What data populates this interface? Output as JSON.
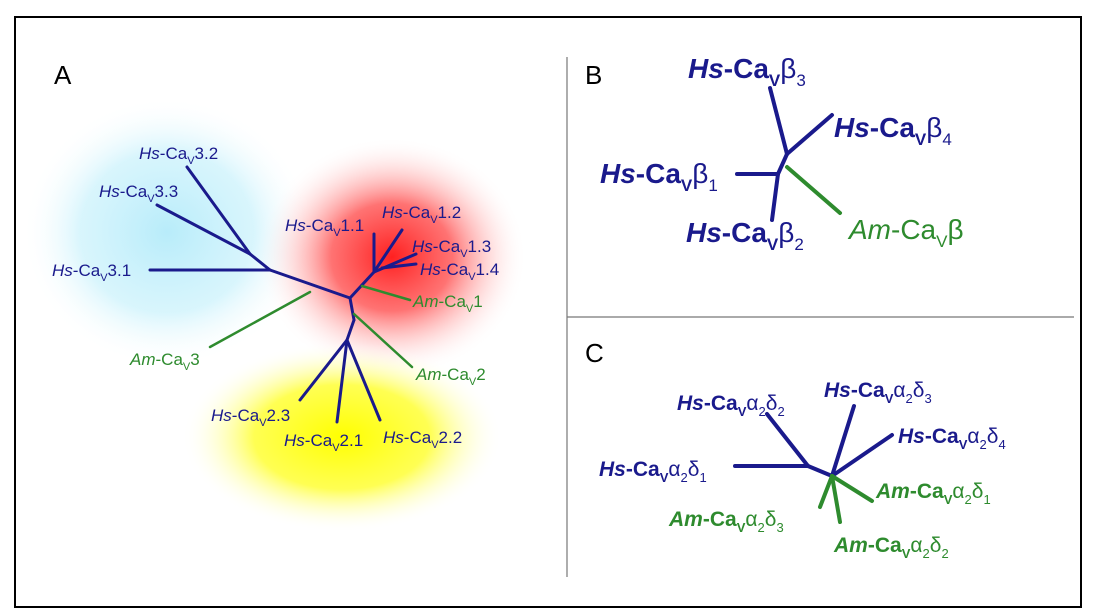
{
  "panels": {
    "a": {
      "letter": "A"
    },
    "b": {
      "letter": "B"
    },
    "c": {
      "letter": "C"
    }
  },
  "colors": {
    "hs_branch": "#1a1a8c",
    "am_branch": "#2e8b2e",
    "hs_text": "#1a1a8c",
    "am_text": "#2e8b2e",
    "glow_blue": "#b8ecfa",
    "glow_red": "#ff3a3a",
    "glow_yellow": "#ffff00"
  },
  "labels": {
    "a": {
      "cav32": {
        "prefix": "Hs",
        "base": "-Ca",
        "sub": "V",
        "rest": "3.2"
      },
      "cav33": {
        "prefix": "Hs",
        "base": "-Ca",
        "sub": "V",
        "rest": "3.3"
      },
      "cav31": {
        "prefix": "Hs",
        "base": "-Ca",
        "sub": "V",
        "rest": "3.1"
      },
      "am_cav3": {
        "prefix": "Am",
        "base": "-Ca",
        "sub": "V",
        "rest": "3"
      },
      "cav11": {
        "prefix": "Hs",
        "base": "-Ca",
        "sub": "V",
        "rest": "1.1"
      },
      "cav12": {
        "prefix": "Hs",
        "base": "-Ca",
        "sub": "V",
        "rest": "1.2"
      },
      "cav13": {
        "prefix": "Hs",
        "base": "-Ca",
        "sub": "V",
        "rest": "1.3"
      },
      "cav14": {
        "prefix": "Hs",
        "base": "-Ca",
        "sub": "V",
        "rest": "1.4"
      },
      "am_cav1": {
        "prefix": "Am",
        "base": "-Ca",
        "sub": "V",
        "rest": "1"
      },
      "am_cav2": {
        "prefix": "Am",
        "base": "-Ca",
        "sub": "V",
        "rest": "2"
      },
      "cav23": {
        "prefix": "Hs",
        "base": "-Ca",
        "sub": "V",
        "rest": "2.3"
      },
      "cav21": {
        "prefix": "Hs",
        "base": "-Ca",
        "sub": "V",
        "rest": "2.1"
      },
      "cav22": {
        "prefix": "Hs",
        "base": "-Ca",
        "sub": "V",
        "rest": "2.2"
      }
    },
    "b": {
      "beta3": {
        "prefix": "Hs",
        "base": "-Ca",
        "sub": "V",
        "greek": "β",
        "gsub": "3"
      },
      "beta4": {
        "prefix": "Hs",
        "base": "-Ca",
        "sub": "V",
        "greek": "β",
        "gsub": "4"
      },
      "beta1": {
        "prefix": "Hs",
        "base": "-Ca",
        "sub": "V",
        "greek": "β",
        "gsub": "1"
      },
      "beta2": {
        "prefix": "Hs",
        "base": "-Ca",
        "sub": "V",
        "greek": "β",
        "gsub": "2"
      },
      "am_beta": {
        "prefix": "Am",
        "base": "-Ca",
        "sub": "V",
        "greek": "β",
        "gsub": ""
      }
    },
    "c": {
      "hs_ad2": {
        "prefix": "Hs",
        "base": "-Ca",
        "sub": "V",
        "g1": "α",
        "g1sub": "2",
        "g2": "δ",
        "g2sub": "2"
      },
      "hs_ad3": {
        "prefix": "Hs",
        "base": "-Ca",
        "sub": "V",
        "g1": "α",
        "g1sub": "2",
        "g2": "δ",
        "g2sub": "3"
      },
      "hs_ad4": {
        "prefix": "Hs",
        "base": "-Ca",
        "sub": "V",
        "g1": "α",
        "g1sub": "2",
        "g2": "δ",
        "g2sub": "4"
      },
      "hs_ad1": {
        "prefix": "Hs",
        "base": "-Ca",
        "sub": "V",
        "g1": "α",
        "g1sub": "2",
        "g2": "δ",
        "g2sub": "1"
      },
      "am_ad1": {
        "prefix": "Am",
        "base": "-Ca",
        "sub": "V",
        "g1": "α",
        "g1sub": "2",
        "g2": "δ",
        "g2sub": "1"
      },
      "am_ad3": {
        "prefix": "Am",
        "base": "-Ca",
        "sub": "V",
        "g1": "α",
        "g1sub": "2",
        "g2": "δ",
        "g2sub": "3"
      },
      "am_ad2": {
        "prefix": "Am",
        "base": "-Ca",
        "sub": "V",
        "g1": "α",
        "g1sub": "2",
        "g2": "δ",
        "g2sub": "2"
      }
    }
  }
}
